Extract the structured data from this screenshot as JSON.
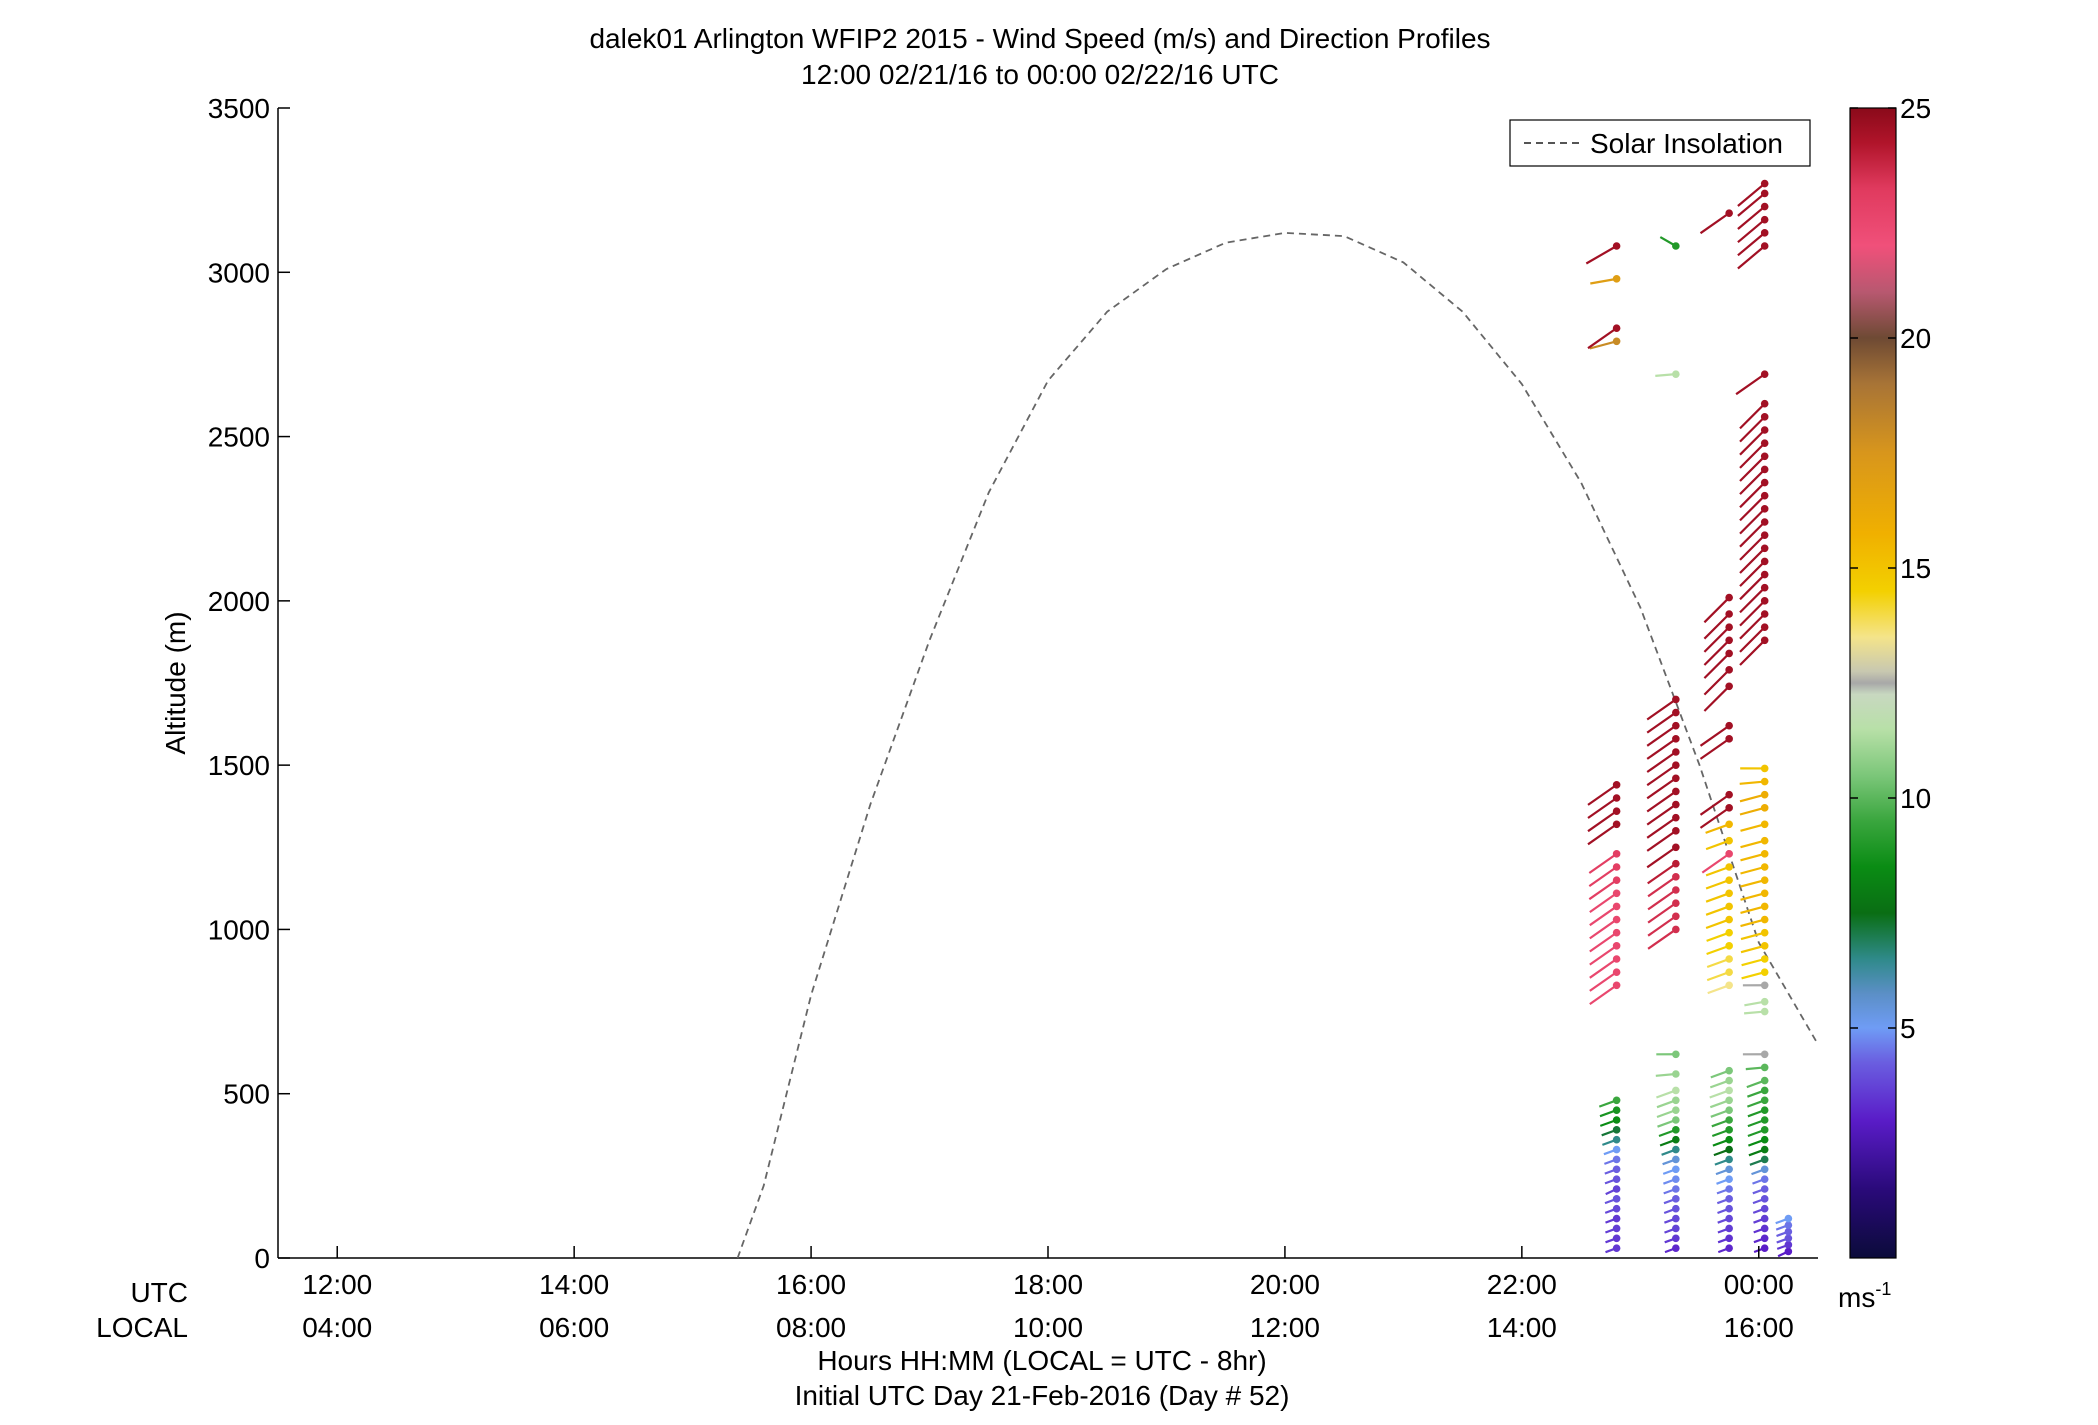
{
  "chart_data": {
    "type": "scatter",
    "title": "dalek01 Arlington WFIP2 2015 - Wind Speed (m/s) and Direction Profiles",
    "subtitle": "12:00 02/21/16 to 00:00 02/22/16  UTC",
    "ylabel": "Altitude (m)",
    "xlabel": "Hours HH:MM  (LOCAL = UTC - 8hr)",
    "xlabel2": "Initial UTC Day 21-Feb-2016 (Day # 52)",
    "row_labels": {
      "utc": "UTC",
      "local": "LOCAL"
    },
    "ylim": [
      0,
      3500
    ],
    "y_ticks": [
      "0",
      "500",
      "1000",
      "1500",
      "2000",
      "2500",
      "3000",
      "3500"
    ],
    "y_tick_values": [
      0,
      500,
      1000,
      1500,
      2000,
      2500,
      3000,
      3500
    ],
    "xlim_hours_utc": [
      11.5,
      24.5
    ],
    "x_ticks_utc": [
      "12:00",
      "14:00",
      "16:00",
      "18:00",
      "20:00",
      "22:00",
      "00:00"
    ],
    "x_ticks_local": [
      "04:00",
      "06:00",
      "08:00",
      "10:00",
      "12:00",
      "14:00",
      "16:00"
    ],
    "x_tick_hours_utc": [
      12,
      14,
      16,
      18,
      20,
      22,
      24
    ],
    "legend": {
      "entries": [
        "Solar Insolation"
      ],
      "placement": "top-right"
    },
    "colorbar": {
      "unit": "ms",
      "unit_sup": "-1",
      "ticks": [
        "5",
        "10",
        "15",
        "20",
        "25"
      ],
      "tick_values": [
        5,
        10,
        15,
        20,
        25
      ],
      "range": [
        0,
        25
      ]
    },
    "solar_insolation": {
      "style": "dashed",
      "color": "#666666",
      "points": [
        [
          15.38,
          0
        ],
        [
          15.6,
          220
        ],
        [
          16.0,
          800
        ],
        [
          16.5,
          1380
        ],
        [
          17.0,
          1880
        ],
        [
          17.5,
          2330
        ],
        [
          18.0,
          2670
        ],
        [
          18.5,
          2880
        ],
        [
          19.0,
          3010
        ],
        [
          19.5,
          3090
        ],
        [
          20.0,
          3120
        ],
        [
          20.5,
          3110
        ],
        [
          21.0,
          3030
        ],
        [
          21.5,
          2880
        ],
        [
          22.0,
          2660
        ],
        [
          22.5,
          2360
        ],
        [
          23.0,
          1980
        ],
        [
          23.5,
          1500
        ],
        [
          24.0,
          960
        ],
        [
          24.5,
          650
        ]
      ]
    },
    "wind_profiles": [
      {
        "time_utc": 22.8,
        "altitudes": [
          30,
          60,
          90,
          120,
          150,
          180,
          210,
          240,
          270,
          300,
          330,
          360,
          390,
          420,
          450,
          480,
          830,
          870,
          910,
          950,
          990,
          1030,
          1070,
          1110,
          1150,
          1190,
          1230,
          1320,
          1360,
          1400,
          1440,
          2790,
          2830,
          2980,
          3080
        ],
        "speeds": [
          3.5,
          3.5,
          3.6,
          3.5,
          3.8,
          4.0,
          3.7,
          4.0,
          4.2,
          4.5,
          5.0,
          6.5,
          7.2,
          8.5,
          8.8,
          9.5,
          22.5,
          22.5,
          22.5,
          22.5,
          22.5,
          22.5,
          22.5,
          22.5,
          23.0,
          23.0,
          23.0,
          24.5,
          24.5,
          24.5,
          24.5,
          18.0,
          24.5,
          17.0,
          24.5
        ],
        "directions": [
          250,
          250,
          250,
          250,
          250,
          250,
          245,
          250,
          250,
          250,
          250,
          250,
          250,
          250,
          250,
          250,
          235,
          235,
          235,
          235,
          235,
          235,
          235,
          235,
          235,
          235,
          235,
          235,
          235,
          235,
          235,
          255,
          235,
          260,
          240
        ]
      },
      {
        "time_utc": 23.3,
        "altitudes": [
          30,
          60,
          90,
          120,
          150,
          180,
          210,
          240,
          270,
          300,
          330,
          360,
          390,
          420,
          450,
          480,
          510,
          560,
          620,
          1000,
          1040,
          1080,
          1120,
          1160,
          1200,
          1250,
          1300,
          1340,
          1380,
          1420,
          1460,
          1500,
          1540,
          1580,
          1620,
          1660,
          1700,
          2690,
          3080
        ],
        "speeds": [
          3.2,
          3.5,
          3.7,
          3.8,
          4.0,
          4.2,
          4.5,
          4.8,
          5.0,
          5.5,
          6.5,
          8.0,
          9.0,
          10.5,
          11.0,
          11.0,
          11.5,
          11.0,
          10.5,
          23.5,
          23.5,
          23.5,
          23.5,
          23.5,
          24.0,
          24.5,
          24.5,
          24.5,
          24.5,
          24.5,
          24.5,
          24.5,
          24.5,
          24.5,
          24.5,
          24.5,
          24.5,
          11.5,
          9.0
        ],
        "directions": [
          250,
          250,
          250,
          250,
          250,
          250,
          250,
          250,
          250,
          250,
          250,
          250,
          250,
          250,
          250,
          250,
          250,
          265,
          270,
          235,
          235,
          235,
          235,
          235,
          235,
          235,
          235,
          235,
          235,
          235,
          235,
          235,
          235,
          235,
          235,
          235,
          235,
          265,
          300
        ]
      },
      {
        "time_utc": 23.75,
        "altitudes": [
          30,
          60,
          90,
          120,
          150,
          180,
          210,
          240,
          270,
          300,
          330,
          360,
          390,
          420,
          450,
          480,
          510,
          540,
          570,
          830,
          870,
          910,
          950,
          990,
          1030,
          1070,
          1110,
          1150,
          1190,
          1230,
          1270,
          1320,
          1370,
          1410,
          1580,
          1620,
          1740,
          1790,
          1840,
          1880,
          1920,
          1960,
          2010,
          3180
        ],
        "speeds": [
          3.2,
          3.4,
          3.6,
          3.8,
          4.0,
          4.2,
          4.5,
          5.0,
          5.5,
          6.5,
          7.5,
          8.5,
          9.0,
          9.5,
          10.5,
          11.0,
          11.5,
          11.0,
          10.5,
          13.5,
          14.0,
          14.0,
          14.5,
          14.5,
          15.0,
          15.0,
          15.0,
          15.0,
          15.0,
          22.5,
          15.0,
          15.5,
          24.5,
          24.5,
          24.5,
          24.5,
          24.5,
          24.5,
          24.5,
          24.5,
          24.5,
          24.5,
          24.5,
          24.5
        ],
        "directions": [
          250,
          250,
          250,
          250,
          250,
          250,
          250,
          250,
          250,
          250,
          250,
          250,
          250,
          250,
          250,
          250,
          250,
          250,
          250,
          250,
          250,
          250,
          250,
          250,
          250,
          250,
          250,
          250,
          250,
          235,
          250,
          250,
          235,
          235,
          235,
          235,
          225,
          225,
          225,
          225,
          225,
          225,
          225,
          235
        ]
      },
      {
        "time_utc": 24.05,
        "altitudes": [
          30,
          60,
          90,
          120,
          150,
          180,
          210,
          240,
          270,
          300,
          330,
          360,
          390,
          420,
          450,
          480,
          510,
          540,
          580,
          620,
          750,
          780,
          830,
          870,
          910,
          950,
          990,
          1030,
          1070,
          1110,
          1150,
          1190,
          1230,
          1270,
          1320,
          1370,
          1410,
          1450,
          1490,
          1880,
          1920,
          1960,
          2000,
          2040,
          2080,
          2120,
          2160,
          2200,
          2240,
          2280,
          2320,
          2360,
          2400,
          2440,
          2480,
          2520,
          2560,
          2600,
          2690,
          3080,
          3120,
          3160,
          3200,
          3240,
          3270
        ],
        "speeds": [
          3.0,
          3.2,
          3.4,
          3.6,
          3.8,
          4.0,
          4.2,
          4.5,
          5.5,
          7.0,
          8.0,
          8.5,
          9.0,
          9.0,
          9.0,
          9.5,
          9.5,
          10.0,
          10.0,
          12.5,
          11.5,
          11.5,
          12.5,
          14.5,
          14.5,
          15.0,
          15.0,
          15.5,
          15.5,
          15.5,
          15.5,
          15.5,
          15.5,
          15.5,
          15.5,
          16.0,
          16.0,
          15.5,
          15.0,
          24.5,
          24.5,
          24.5,
          24.5,
          24.5,
          24.5,
          24.5,
          24.5,
          24.5,
          24.5,
          24.5,
          24.5,
          24.5,
          24.5,
          24.5,
          24.5,
          24.5,
          24.5,
          24.5,
          24.5,
          24.5,
          24.5,
          24.5,
          24.5,
          24.5,
          24.5
        ],
        "directions": [
          250,
          250,
          250,
          250,
          250,
          250,
          250,
          250,
          250,
          250,
          250,
          250,
          250,
          250,
          250,
          250,
          250,
          250,
          265,
          270,
          265,
          260,
          270,
          255,
          255,
          255,
          255,
          255,
          255,
          255,
          255,
          255,
          255,
          255,
          255,
          255,
          255,
          265,
          270,
          225,
          225,
          225,
          225,
          225,
          225,
          225,
          225,
          225,
          225,
          225,
          225,
          225,
          225,
          225,
          225,
          225,
          225,
          225,
          235,
          230,
          230,
          230,
          230,
          230,
          230
        ]
      },
      {
        "time_utc": 24.25,
        "altitudes": [
          20,
          40,
          60,
          80,
          100,
          120
        ],
        "speeds": [
          3.0,
          3.5,
          4.0,
          4.2,
          4.5,
          5.0
        ],
        "directions": [
          245,
          250,
          250,
          250,
          250,
          250
        ]
      }
    ]
  }
}
